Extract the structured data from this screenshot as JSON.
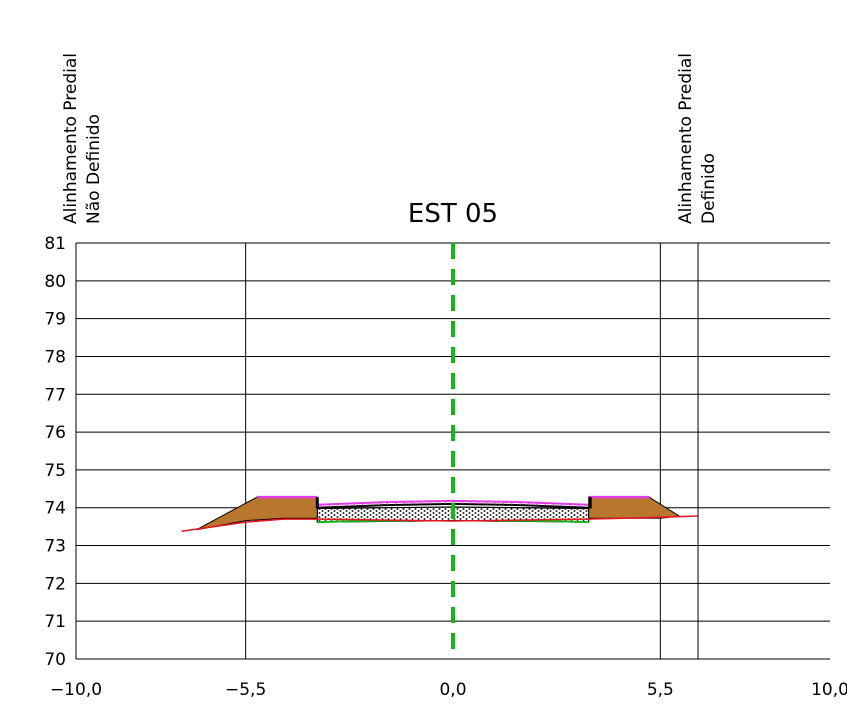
{
  "title": "EST  05",
  "annotations": {
    "left": {
      "line1": "Alinhamento  Predial",
      "line2": "Não  Definido"
    },
    "right": {
      "line1": "Alinhamento  Predial",
      "line2": "Definido"
    }
  },
  "chart_data": {
    "type": "cross-section",
    "title": "EST  05",
    "xlim": [
      -10.0,
      10.0
    ],
    "ylim": [
      70,
      81
    ],
    "x_ticks": [
      {
        "value": -10.0,
        "label": "−10,0"
      },
      {
        "value": -5.5,
        "label": "−5,5"
      },
      {
        "value": 0.0,
        "label": "0,0"
      },
      {
        "value": 5.5,
        "label": "5,5"
      },
      {
        "value": 10.0,
        "label": "10,0"
      }
    ],
    "y_ticks": [
      81,
      80,
      79,
      78,
      77,
      76,
      75,
      74,
      73,
      72,
      71,
      70
    ],
    "grid": true,
    "verticals": [
      {
        "x": -5.5,
        "kind": "offset-marker"
      },
      {
        "x": 0.0,
        "kind": "centerline"
      },
      {
        "x": 5.5,
        "kind": "offset-marker"
      },
      {
        "x": 6.5,
        "kind": "property-line"
      }
    ],
    "terrain": [
      [
        -7.2,
        73.38
      ],
      [
        -5.5,
        73.62
      ],
      [
        -4.5,
        73.7
      ],
      [
        -3.5,
        73.7
      ],
      [
        0,
        73.65
      ],
      [
        3.5,
        73.7
      ],
      [
        4.5,
        73.72
      ],
      [
        5.5,
        73.75
      ],
      [
        6.5,
        73.78
      ]
    ],
    "left_embankment": [
      [
        -6.8,
        73.42
      ],
      [
        -5.2,
        74.28
      ],
      [
        -3.6,
        74.28
      ],
      [
        -3.6,
        73.72
      ],
      [
        -4.5,
        73.72
      ],
      [
        -5.5,
        73.66
      ]
    ],
    "right_embankment": [
      [
        3.6,
        74.28
      ],
      [
        5.2,
        74.28
      ],
      [
        6.0,
        73.78
      ],
      [
        5.5,
        73.72
      ],
      [
        4.5,
        73.72
      ],
      [
        3.6,
        73.72
      ]
    ],
    "pavement_top": [
      [
        -3.6,
        74.08
      ],
      [
        -1.8,
        74.15
      ],
      [
        0,
        74.18
      ],
      [
        1.8,
        74.15
      ],
      [
        3.6,
        74.08
      ]
    ],
    "base_layer": [
      [
        -3.6,
        73.98
      ],
      [
        0,
        74.02
      ],
      [
        3.6,
        73.98
      ],
      [
        3.6,
        73.62
      ],
      [
        0,
        73.66
      ],
      [
        -3.6,
        73.62
      ]
    ],
    "colors": {
      "terrain": "#e8141e",
      "embankment": "#b8772c",
      "centerline": "#18b418",
      "pavement": "#e43ce4",
      "subgrade": "#18b418",
      "grid": "#000000"
    }
  }
}
